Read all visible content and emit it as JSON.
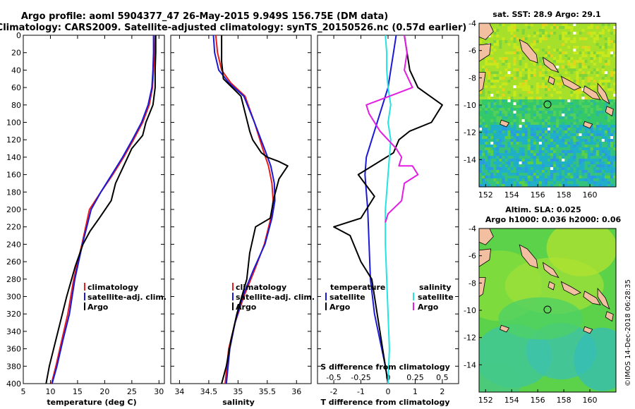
{
  "title": {
    "line1": "Argo profile: aoml 5904377_47 26-May-2015 9.949S 156.75E (DM data)",
    "line2": "Climatology: CARS2009. Satellite-adjusted climatology: synTS_20150526.nc (0.57d earlier)"
  },
  "colors": {
    "climatology": "#e81c1c",
    "satellite": "#1a1ad6",
    "argo": "#000000",
    "salinity_sat": "#27e2e2",
    "salinity_argo": "#e21ee2",
    "land": "#f2bfa0"
  },
  "chart_data": [
    {
      "type": "line",
      "name": "temperature",
      "xlabel": "temperature (deg C)",
      "xlim": [
        5,
        31
      ],
      "xticks": [
        5,
        10,
        15,
        20,
        25,
        30
      ],
      "ylim": [
        0,
        400
      ],
      "yticks": [
        0,
        20,
        40,
        60,
        80,
        100,
        120,
        140,
        160,
        180,
        200,
        220,
        240,
        260,
        280,
        300,
        320,
        340,
        360,
        380,
        400
      ],
      "legend": [
        "climatology",
        "satellite-adj. clim.",
        "Argo"
      ],
      "series": [
        {
          "name": "climatology",
          "color": "climatology",
          "x": [
            29.3,
            29.2,
            29.0,
            28.8,
            28.2,
            27.0,
            25.3,
            23.5,
            21.5,
            19.3,
            17.2,
            15.8,
            14.3,
            13.2,
            12.1,
            11.0,
            10.2
          ],
          "y": [
            0,
            20,
            40,
            60,
            80,
            100,
            120,
            140,
            160,
            180,
            200,
            240,
            280,
            320,
            350,
            380,
            400
          ]
        },
        {
          "name": "satellite-adj. clim.",
          "color": "satellite",
          "x": [
            29.0,
            29.0,
            28.9,
            28.7,
            28.0,
            26.8,
            25.1,
            23.3,
            21.3,
            19.3,
            17.5,
            15.9,
            14.5,
            13.5,
            12.3,
            11.2,
            10.3
          ],
          "y": [
            0,
            20,
            40,
            60,
            80,
            100,
            120,
            140,
            160,
            180,
            200,
            240,
            280,
            320,
            350,
            380,
            400
          ]
        },
        {
          "name": "Argo",
          "color": "argo",
          "x": [
            29.4,
            29.4,
            29.3,
            29.3,
            28.9,
            27.6,
            27.0,
            25.0,
            23.5,
            22.0,
            21.2,
            19.0,
            17.3,
            16.0,
            14.6,
            13.0,
            11.8,
            10.8,
            9.8,
            9.2
          ],
          "y": [
            0,
            20,
            40,
            60,
            80,
            100,
            115,
            130,
            150,
            170,
            190,
            210,
            225,
            240,
            265,
            300,
            330,
            355,
            380,
            400
          ]
        }
      ]
    },
    {
      "type": "line",
      "name": "salinity",
      "xlabel": "salinity",
      "xlim": [
        33.85,
        36.25
      ],
      "xticks": [
        34,
        34.5,
        35,
        35.5,
        36
      ],
      "ylim": [
        0,
        400
      ],
      "legend": [
        "climatology",
        "satellite-adj. clim.",
        "Argo"
      ],
      "series": [
        {
          "name": "climatology",
          "color": "climatology",
          "x": [
            34.62,
            34.65,
            34.72,
            34.88,
            35.12,
            35.28,
            35.42,
            35.52,
            35.58,
            35.6,
            35.56,
            35.45,
            35.28,
            35.1,
            34.95,
            34.84,
            34.78
          ],
          "y": [
            0,
            20,
            40,
            55,
            70,
            100,
            130,
            150,
            170,
            190,
            210,
            240,
            270,
            300,
            330,
            360,
            400
          ]
        },
        {
          "name": "satellite-adj. clim.",
          "color": "satellite",
          "x": [
            34.58,
            34.6,
            34.67,
            34.85,
            35.1,
            35.28,
            35.45,
            35.56,
            35.62,
            35.63,
            35.58,
            35.46,
            35.26,
            35.08,
            34.95,
            34.86,
            34.8
          ],
          "y": [
            0,
            20,
            40,
            55,
            70,
            100,
            130,
            150,
            170,
            190,
            210,
            240,
            270,
            300,
            330,
            360,
            400
          ]
        },
        {
          "name": "Argo",
          "color": "argo",
          "x": [
            34.72,
            34.72,
            34.75,
            34.9,
            35.05,
            35.2,
            35.25,
            35.4,
            35.5,
            35.7,
            35.85,
            35.7,
            35.62,
            35.55,
            35.3,
            35.2,
            35.15,
            34.98,
            34.88,
            34.8,
            34.72
          ],
          "y": [
            0,
            30,
            50,
            60,
            70,
            110,
            120,
            135,
            140,
            145,
            150,
            165,
            185,
            210,
            220,
            250,
            280,
            320,
            350,
            380,
            400
          ]
        }
      ]
    },
    {
      "type": "line",
      "name": "differences",
      "xlabel": "T difference from climatology",
      "xlabel_top": "S difference from climatology",
      "xlim": [
        -2.6,
        2.6
      ],
      "xticks": [
        -2,
        -1,
        0,
        1,
        2
      ],
      "xticks_salinity": [
        -0.5,
        -0.25,
        0,
        0.25,
        0.5
      ],
      "ylim": [
        0,
        400
      ],
      "legend_temperature": {
        "heading": "temperature",
        "items": [
          "satellite",
          "Argo"
        ]
      },
      "legend_salinity": {
        "heading": "salinity",
        "items": [
          "satellite",
          "Argo"
        ]
      },
      "series": [
        {
          "name": "temperature satellite",
          "color": "satellite",
          "x": [
            0.3,
            0.2,
            0.1,
            0.0,
            -0.2,
            -0.4,
            -0.6,
            -0.8,
            -0.85,
            -0.8,
            -0.75,
            -0.7,
            -0.65,
            -0.5,
            -0.3,
            -0.1,
            0.0
          ],
          "y": [
            0,
            20,
            40,
            60,
            80,
            100,
            120,
            140,
            160,
            180,
            200,
            240,
            280,
            320,
            350,
            380,
            400
          ]
        },
        {
          "name": "temperature Argo",
          "color": "argo",
          "x": [
            0.6,
            0.7,
            0.8,
            1.1,
            2.0,
            1.6,
            0.8,
            0.4,
            0.2,
            -1.1,
            -0.5,
            -1.0,
            -2.0,
            -1.4,
            -1.0,
            -0.6,
            -0.5,
            -0.4,
            -0.3,
            -0.2,
            -0.1,
            0.0
          ],
          "y": [
            0,
            20,
            40,
            60,
            80,
            100,
            110,
            120,
            135,
            160,
            185,
            210,
            220,
            230,
            260,
            280,
            300,
            320,
            340,
            360,
            380,
            400
          ]
        },
        {
          "name": "salinity satellite",
          "color": "salinity_sat",
          "x": [
            -0.1,
            -0.05,
            -0.05,
            0.0,
            0.1,
            0.0,
            0.1,
            0.05,
            0.0,
            -0.05,
            -0.1,
            -0.1,
            -0.05,
            0.0,
            0.05,
            0.0
          ],
          "y": [
            0,
            20,
            40,
            60,
            80,
            100,
            120,
            140,
            160,
            180,
            200,
            240,
            280,
            320,
            360,
            400
          ]
        },
        {
          "name": "salinity Argo",
          "color": "salinity_argo",
          "x": [
            0.6,
            0.7,
            0.6,
            0.9,
            -0.8,
            -0.7,
            -0.5,
            -0.3,
            0.3,
            0.5,
            0.4,
            0.9,
            1.1,
            0.6,
            0.5,
            0.0,
            -0.1
          ],
          "y": [
            0,
            20,
            40,
            60,
            80,
            90,
            100,
            110,
            130,
            140,
            150,
            150,
            160,
            170,
            190,
            205,
            215
          ]
        }
      ]
    }
  ],
  "maps": [
    {
      "name": "sst",
      "title_line1": "sat. SST: 28.9 Argo: 29.1",
      "title_line2": "",
      "xticks": [
        152,
        154,
        156,
        158,
        160
      ],
      "xlim": [
        151.5,
        162
      ],
      "yticks": [
        -4,
        -6,
        -8,
        -10,
        -12,
        -14
      ],
      "ylim": [
        -16,
        -4
      ],
      "marker": {
        "lon": 156.75,
        "lat": -9.949
      }
    },
    {
      "name": "sla",
      "title_line1": "Altim. SLA: 0.025",
      "title_line2": "Argo h1000: 0.036 h2000: 0.06",
      "xticks": [
        152,
        154,
        156,
        158,
        160
      ],
      "xlim": [
        151.5,
        162
      ],
      "yticks": [
        -4,
        -6,
        -8,
        -10,
        -12,
        -14
      ],
      "ylim": [
        -16,
        -4
      ],
      "marker": {
        "lon": 156.75,
        "lat": -9.949
      }
    }
  ],
  "watermark": "©IMOS 14-Dec-2018 06:28:35"
}
